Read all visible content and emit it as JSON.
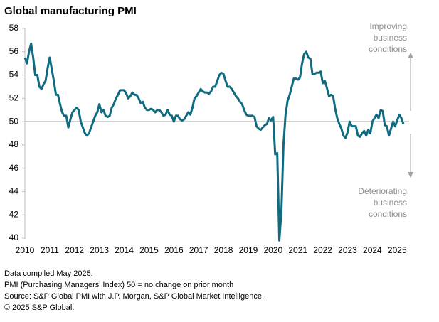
{
  "chart_data": {
    "type": "line",
    "title": "Global manufacturing PMI",
    "categories": [
      "2010",
      null,
      null,
      null,
      null,
      null,
      null,
      null,
      null,
      null,
      null,
      null,
      "2011",
      null,
      null,
      null,
      null,
      null,
      null,
      null,
      null,
      null,
      null,
      null,
      "2012",
      null,
      null,
      null,
      null,
      null,
      null,
      null,
      null,
      null,
      null,
      null,
      "2013",
      null,
      null,
      null,
      null,
      null,
      null,
      null,
      null,
      null,
      null,
      null,
      "2014",
      null,
      null,
      null,
      null,
      null,
      null,
      null,
      null,
      null,
      null,
      null,
      "2015",
      null,
      null,
      null,
      null,
      null,
      null,
      null,
      null,
      null,
      null,
      null,
      "2016",
      null,
      null,
      null,
      null,
      null,
      null,
      null,
      null,
      null,
      null,
      null,
      "2017",
      null,
      null,
      null,
      null,
      null,
      null,
      null,
      null,
      null,
      null,
      null,
      "2018",
      null,
      null,
      null,
      null,
      null,
      null,
      null,
      null,
      null,
      null,
      null,
      "2019",
      null,
      null,
      null,
      null,
      null,
      null,
      null,
      null,
      null,
      null,
      null,
      "2020",
      null,
      null,
      null,
      null,
      null,
      null,
      null,
      null,
      null,
      null,
      null,
      "2021",
      null,
      null,
      null,
      null,
      null,
      null,
      null,
      null,
      null,
      null,
      null,
      "2022",
      null,
      null,
      null,
      null,
      null,
      null,
      null,
      null,
      null,
      null,
      null,
      "2023",
      null,
      null,
      null,
      null,
      null,
      null,
      null,
      null,
      null,
      null,
      null,
      "2024",
      null,
      null,
      null,
      null,
      null,
      null,
      null,
      null,
      null,
      null,
      null,
      "2025",
      null,
      null,
      null
    ],
    "series": [
      {
        "color": "#0f6b80",
        "values": [
          55.5,
          55.0,
          56.0,
          56.7,
          55.5,
          54.0,
          54.0,
          53.0,
          52.8,
          53.2,
          53.5,
          54.6,
          55.5,
          54.5,
          53.5,
          52.3,
          52.3,
          51.5,
          50.8,
          50.5,
          50.5,
          49.5,
          50.2,
          50.8,
          51.0,
          51.2,
          51.0,
          50.0,
          49.5,
          49.0,
          48.8,
          49.0,
          49.5,
          50.0,
          50.5,
          50.8,
          51.5,
          50.8,
          51.0,
          50.5,
          50.4,
          50.5,
          51.2,
          51.5,
          52.0,
          52.3,
          52.7,
          52.7,
          52.7,
          52.4,
          52.0,
          52.2,
          52.5,
          52.3,
          52.3,
          52.0,
          51.6,
          51.7,
          51.2,
          51.0,
          51.0,
          51.1,
          51.0,
          50.8,
          51.0,
          51.0,
          50.8,
          50.5,
          50.6,
          51.0,
          50.6,
          50.5,
          50.0,
          50.5,
          50.5,
          50.2,
          50.1,
          50.2,
          50.5,
          50.8,
          50.6,
          51.2,
          52.0,
          52.2,
          52.5,
          52.8,
          52.6,
          52.5,
          52.5,
          52.4,
          52.6,
          53.0,
          53.0,
          53.5,
          54.0,
          54.2,
          54.1,
          53.5,
          53.0,
          53.0,
          52.8,
          52.5,
          52.2,
          52.0,
          51.7,
          51.5,
          51.0,
          50.6,
          50.5,
          50.5,
          50.5,
          50.4,
          49.6,
          49.4,
          49.3,
          49.5,
          49.7,
          49.8,
          50.3,
          50.1,
          50.4,
          47.2,
          47.3,
          39.8,
          42.3,
          48.0,
          50.6,
          51.8,
          52.3,
          53.0,
          53.7,
          53.7,
          53.6,
          53.8,
          55.0,
          55.8,
          56.0,
          55.5,
          55.4,
          54.1,
          54.1,
          54.2,
          54.2,
          54.3,
          53.3,
          53.5,
          52.9,
          52.2,
          52.3,
          52.2,
          51.1,
          50.3,
          49.8,
          49.4,
          48.8,
          48.6,
          49.1,
          50.0,
          49.6,
          49.6,
          49.6,
          48.8,
          48.7,
          49.0,
          49.2,
          48.8,
          49.3,
          49.0,
          50.0,
          50.3,
          50.6,
          50.3,
          51.0,
          50.9,
          49.7,
          49.6,
          48.8,
          49.4,
          50.0,
          49.6,
          50.1,
          50.6,
          50.3,
          49.8
        ]
      }
    ],
    "ylim": [
      40,
      58
    ],
    "yticks": [
      40,
      42,
      44,
      46,
      48,
      50,
      52,
      54,
      56,
      58
    ],
    "reference_line": 50,
    "annotations": [
      [
        "Improving",
        "business",
        "conditions"
      ],
      [
        "Deteriorating",
        "business",
        "conditions"
      ]
    ],
    "notes": [
      "Data compiled May 2025.",
      "PMI (Purchasing Managers' Index) 50 = no change on prior month",
      "Source: S&P Global  PMI with J.P. Morgan, S&P Global Market Intelligence.",
      "© 2025 S&P Global."
    ]
  }
}
